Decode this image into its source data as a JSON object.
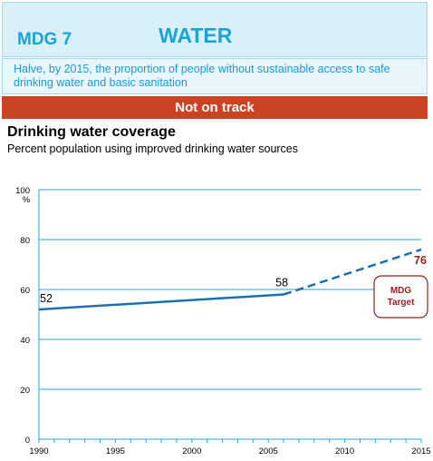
{
  "header": {
    "goal_number": "MDG 7",
    "topic": "WATER"
  },
  "goal_text": "Halve, by 2015, the proportion of people without sustainable access to safe drinking water and basic sanitation",
  "status": "Not on track",
  "chart_data": {
    "type": "line",
    "title": "Drinking water coverage",
    "subtitle": "Percent population using improved drinking water sources",
    "ylabel": "%",
    "xlim": [
      1990,
      2015
    ],
    "ylim": [
      0,
      100
    ],
    "xticks": [
      1990,
      1995,
      2000,
      2005,
      2010,
      2015
    ],
    "yticks": [
      0,
      20,
      40,
      60,
      80,
      100
    ],
    "grid": true,
    "series": [
      {
        "name": "",
        "style": "solid",
        "color": "#1f6fb0",
        "x": [
          1990,
          2006
        ],
        "y": [
          52,
          58
        ],
        "labels": [
          "52",
          "58"
        ]
      },
      {
        "name": "",
        "style": "dashed",
        "color": "#1f6fb0",
        "x": [
          2006,
          2015
        ],
        "y": [
          58,
          76
        ],
        "labels": [
          "",
          "76"
        ]
      }
    ],
    "annotation": {
      "text_line1": "MDG",
      "text_line2": "Target",
      "color": "#9b1c1c"
    }
  }
}
